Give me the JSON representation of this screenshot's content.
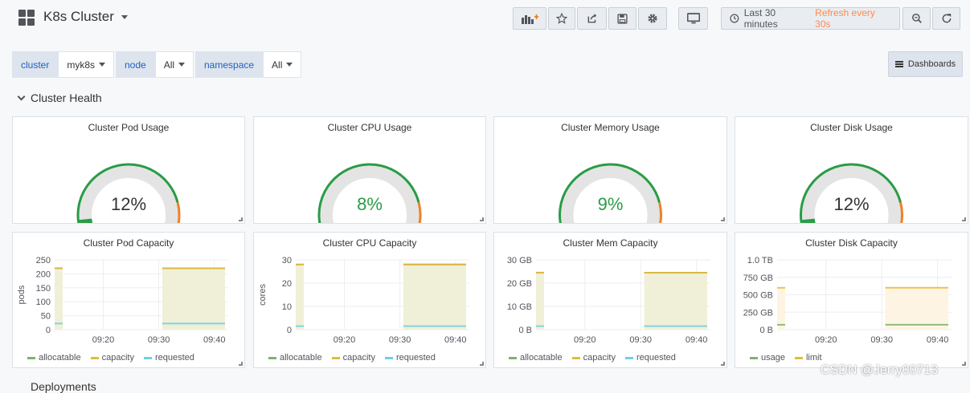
{
  "header": {
    "title": "K8s Cluster",
    "time_range": "Last 30 minutes",
    "refresh": "Refresh every 30s"
  },
  "toolbar_icons": [
    "add-panel-icon",
    "star-icon",
    "share-icon",
    "save-icon",
    "gear-icon",
    "tv-icon",
    "clock-icon",
    "zoom-out-icon",
    "refresh-icon"
  ],
  "variables": [
    {
      "label": "cluster",
      "value": "myk8s"
    },
    {
      "label": "node",
      "value": "All"
    },
    {
      "label": "namespace",
      "value": "All"
    }
  ],
  "dashboards_button": "Dashboards",
  "row_title": "Cluster Health",
  "next_row_title": "Deployments",
  "gauges": [
    {
      "title": "Cluster Pod Usage",
      "value": "12%",
      "fraction": 0.12,
      "color": "#333333"
    },
    {
      "title": "Cluster CPU Usage",
      "value": "8%",
      "fraction": 0.08,
      "color": "#299c46"
    },
    {
      "title": "Cluster Memory Usage",
      "value": "9%",
      "fraction": 0.09,
      "color": "#299c46"
    },
    {
      "title": "Cluster Disk Usage",
      "value": "12%",
      "fraction": 0.12,
      "color": "#333333"
    }
  ],
  "chart_data": [
    {
      "type": "line",
      "title": "Cluster Pod Capacity",
      "ylabel": "pods",
      "ylim": [
        0,
        250
      ],
      "yticks": [
        "250",
        "200",
        "150",
        "100",
        "50",
        "0"
      ],
      "xticks": [
        "09:20",
        "09:30",
        "09:40"
      ],
      "legend": [
        "allocatable",
        "capacity",
        "requested"
      ],
      "legend_colors": [
        "#7eb26d",
        "#eab839",
        "#6ed0e0"
      ],
      "series": [
        {
          "name": "allocatable",
          "values": [
            220,
            220
          ]
        },
        {
          "name": "capacity",
          "values": [
            220,
            220
          ]
        },
        {
          "name": "requested",
          "values": [
            22,
            22
          ]
        }
      ]
    },
    {
      "type": "line",
      "title": "Cluster CPU Capacity",
      "ylabel": "cores",
      "ylim": [
        0,
        30
      ],
      "yticks": [
        "30",
        "20",
        "10",
        "0"
      ],
      "xticks": [
        "09:20",
        "09:30",
        "09:40"
      ],
      "legend": [
        "allocatable",
        "capacity",
        "requested"
      ],
      "legend_colors": [
        "#7eb26d",
        "#eab839",
        "#6ed0e0"
      ],
      "series": [
        {
          "name": "allocatable",
          "values": [
            28,
            28
          ]
        },
        {
          "name": "capacity",
          "values": [
            28,
            28
          ]
        },
        {
          "name": "requested",
          "values": [
            1.5,
            1.5
          ]
        }
      ]
    },
    {
      "type": "line",
      "title": "Cluster Mem Capacity",
      "ylabel": "",
      "ylim": [
        0,
        30
      ],
      "yticks": [
        "30 GB",
        "20 GB",
        "10 GB",
        "0 B"
      ],
      "xticks": [
        "09:20",
        "09:30",
        "09:40"
      ],
      "legend": [
        "allocatable",
        "capacity",
        "requested"
      ],
      "legend_colors": [
        "#7eb26d",
        "#eab839",
        "#6ed0e0"
      ],
      "series": [
        {
          "name": "allocatable",
          "values": [
            24.5,
            24.5
          ]
        },
        {
          "name": "capacity",
          "values": [
            24.5,
            24.5
          ]
        },
        {
          "name": "requested",
          "values": [
            1.5,
            1.5
          ]
        }
      ]
    },
    {
      "type": "line",
      "title": "Cluster Disk Capacity",
      "ylabel": "",
      "ylim": [
        0,
        1000
      ],
      "yticks": [
        "1.0 TB",
        "750 GB",
        "500 GB",
        "250 GB",
        "0 B"
      ],
      "xticks": [
        "09:20",
        "09:30",
        "09:40"
      ],
      "legend": [
        "usage",
        "limit"
      ],
      "legend_colors": [
        "#7eb26d",
        "#eab839"
      ],
      "series": [
        {
          "name": "usage",
          "values": [
            70,
            70
          ]
        },
        {
          "name": "limit",
          "values": [
            600,
            600
          ]
        }
      ]
    }
  ],
  "watermark": "CSDN @Jerry00713"
}
